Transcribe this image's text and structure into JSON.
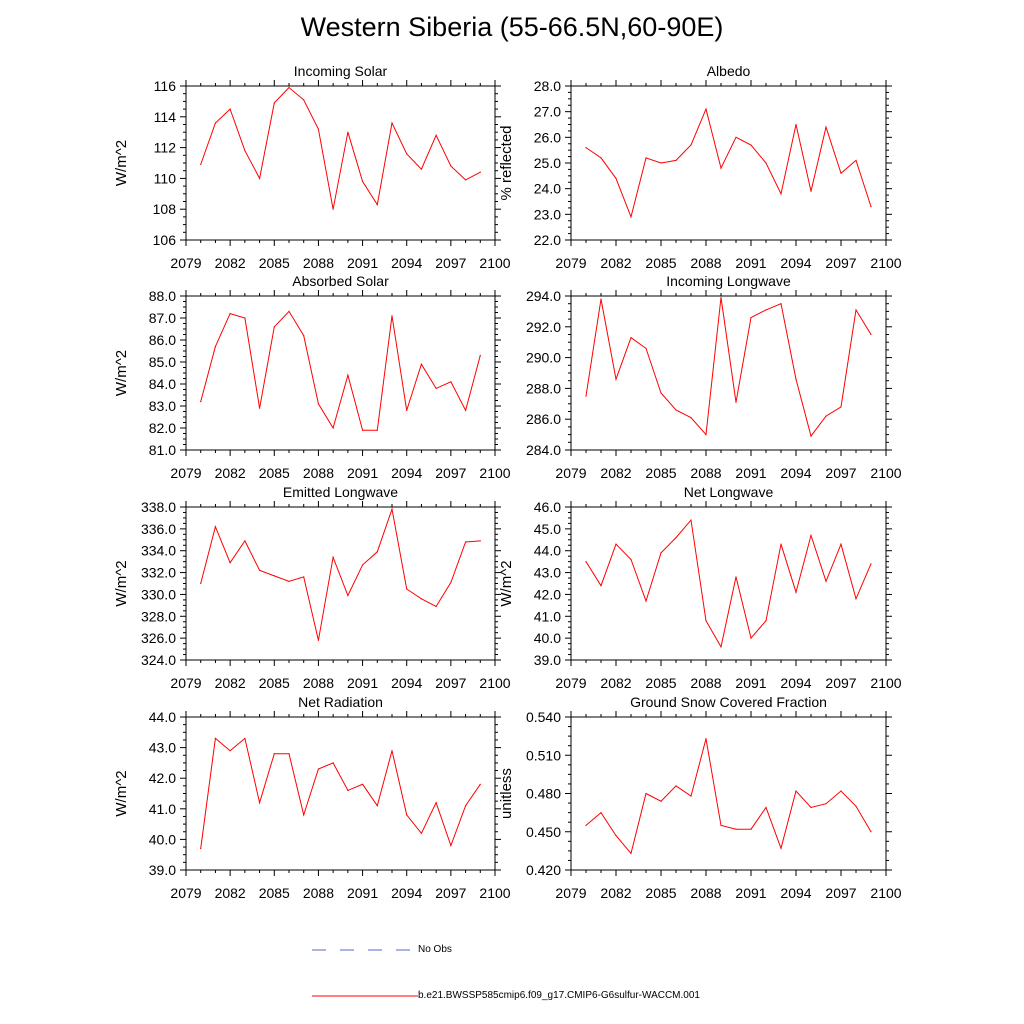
{
  "title": "Western Siberia (55-66.5N,60-90E)",
  "legend": {
    "entries": [
      {
        "label": "No Obs",
        "style": "dashed",
        "color": "#5566cc"
      },
      {
        "label": "b.e21.BWSSP585cmip6.f09_g17.CMIP6-G6sulfur-WACCM.001",
        "style": "solid",
        "color": "#ff0000"
      }
    ]
  },
  "chart_data": [
    {
      "type": "line",
      "title": "Incoming Solar",
      "ylabel": "W/m^2",
      "xlim": [
        2079,
        2100
      ],
      "ylim": [
        106,
        116
      ],
      "xticks": [
        2079,
        2082,
        2085,
        2088,
        2091,
        2094,
        2097,
        2100
      ],
      "yticks": [
        "106",
        "108",
        "110",
        "112",
        "114",
        "116"
      ],
      "yticks_values": [
        106,
        108,
        110,
        112,
        114,
        116
      ],
      "x": [
        2080,
        2081,
        2082,
        2083,
        2084,
        2085,
        2086,
        2087,
        2088,
        2089,
        2090,
        2091,
        2092,
        2093,
        2094,
        2095,
        2096,
        2097,
        2098,
        2099
      ],
      "series": [
        {
          "color": "#ff0000",
          "values": [
            110.9,
            113.6,
            114.5,
            111.8,
            110.0,
            114.9,
            115.9,
            115.1,
            113.2,
            108.0,
            113.0,
            109.8,
            108.3,
            113.6,
            111.6,
            110.6,
            112.8,
            110.8,
            109.9,
            110.4
          ]
        }
      ]
    },
    {
      "type": "line",
      "title": "Albedo",
      "ylabel": "% reflected",
      "xlim": [
        2079,
        2100
      ],
      "ylim": [
        22.0,
        28.0
      ],
      "xticks": [
        2079,
        2082,
        2085,
        2088,
        2091,
        2094,
        2097,
        2100
      ],
      "yticks": [
        "22.0",
        "23.0",
        "24.0",
        "25.0",
        "26.0",
        "27.0",
        "28.0"
      ],
      "yticks_values": [
        22,
        23,
        24,
        25,
        26,
        27,
        28
      ],
      "x": [
        2080,
        2081,
        2082,
        2083,
        2084,
        2085,
        2086,
        2087,
        2088,
        2089,
        2090,
        2091,
        2092,
        2093,
        2094,
        2095,
        2096,
        2097,
        2098,
        2099
      ],
      "series": [
        {
          "color": "#ff0000",
          "values": [
            25.6,
            25.2,
            24.4,
            22.9,
            25.2,
            25.0,
            25.1,
            25.7,
            27.1,
            24.8,
            26.0,
            25.7,
            25.0,
            23.8,
            26.5,
            23.9,
            26.4,
            24.6,
            25.1,
            23.3
          ]
        }
      ]
    },
    {
      "type": "line",
      "title": "Absorbed Solar",
      "ylabel": "W/m^2",
      "xlim": [
        2079,
        2100
      ],
      "ylim": [
        81.0,
        88.0
      ],
      "xticks": [
        2079,
        2082,
        2085,
        2088,
        2091,
        2094,
        2097,
        2100
      ],
      "yticks": [
        "81.0",
        "82.0",
        "83.0",
        "84.0",
        "85.0",
        "86.0",
        "87.0",
        "88.0"
      ],
      "yticks_values": [
        81,
        82,
        83,
        84,
        85,
        86,
        87,
        88
      ],
      "x": [
        2080,
        2081,
        2082,
        2083,
        2084,
        2085,
        2086,
        2087,
        2088,
        2089,
        2090,
        2091,
        2092,
        2093,
        2094,
        2095,
        2096,
        2097,
        2098,
        2099
      ],
      "series": [
        {
          "color": "#ff0000",
          "values": [
            83.2,
            85.7,
            87.2,
            87.0,
            82.9,
            86.6,
            87.3,
            86.2,
            83.1,
            82.0,
            84.4,
            81.9,
            81.9,
            87.1,
            82.8,
            84.9,
            83.8,
            84.1,
            82.8,
            85.3
          ]
        }
      ]
    },
    {
      "type": "line",
      "title": "Incoming Longwave",
      "ylabel": "",
      "xlim": [
        2079,
        2100
      ],
      "ylim": [
        284.0,
        294.0
      ],
      "xticks": [
        2079,
        2082,
        2085,
        2088,
        2091,
        2094,
        2097,
        2100
      ],
      "yticks": [
        "284.0",
        "286.0",
        "288.0",
        "290.0",
        "292.0",
        "294.0"
      ],
      "yticks_values": [
        284,
        286,
        288,
        290,
        292,
        294
      ],
      "x": [
        2080,
        2081,
        2082,
        2083,
        2084,
        2085,
        2086,
        2087,
        2088,
        2089,
        2090,
        2091,
        2092,
        2093,
        2094,
        2095,
        2096,
        2097,
        2098,
        2099
      ],
      "series": [
        {
          "color": "#ff0000",
          "values": [
            287.5,
            293.8,
            288.6,
            291.3,
            290.6,
            287.7,
            286.6,
            286.1,
            285.0,
            293.9,
            287.1,
            292.6,
            293.1,
            293.5,
            288.6,
            284.9,
            286.2,
            286.8,
            293.1,
            291.5
          ]
        }
      ]
    },
    {
      "type": "line",
      "title": "Emitted Longwave",
      "ylabel": "W/m^2",
      "xlim": [
        2079,
        2100
      ],
      "ylim": [
        324.0,
        338.0
      ],
      "xticks": [
        2079,
        2082,
        2085,
        2088,
        2091,
        2094,
        2097,
        2100
      ],
      "yticks": [
        "324.0",
        "326.0",
        "328.0",
        "330.0",
        "332.0",
        "334.0",
        "336.0",
        "338.0"
      ],
      "yticks_values": [
        324,
        326,
        328,
        330,
        332,
        334,
        336,
        338
      ],
      "x": [
        2080,
        2081,
        2082,
        2083,
        2084,
        2085,
        2086,
        2087,
        2088,
        2089,
        2090,
        2091,
        2092,
        2093,
        2094,
        2095,
        2096,
        2097,
        2098,
        2099
      ],
      "series": [
        {
          "color": "#ff0000",
          "values": [
            331.0,
            336.2,
            332.9,
            334.9,
            332.2,
            331.7,
            331.2,
            331.6,
            325.8,
            333.4,
            329.9,
            332.7,
            333.9,
            337.8,
            330.5,
            329.6,
            328.9,
            331.1,
            334.8,
            334.9
          ]
        }
      ]
    },
    {
      "type": "line",
      "title": "Net Longwave",
      "ylabel": "W/m^2",
      "xlim": [
        2079,
        2100
      ],
      "ylim": [
        39.0,
        46.0
      ],
      "xticks": [
        2079,
        2082,
        2085,
        2088,
        2091,
        2094,
        2097,
        2100
      ],
      "yticks": [
        "39.0",
        "40.0",
        "41.0",
        "42.0",
        "43.0",
        "44.0",
        "45.0",
        "46.0"
      ],
      "yticks_values": [
        39,
        40,
        41,
        42,
        43,
        44,
        45,
        46
      ],
      "x": [
        2080,
        2081,
        2082,
        2083,
        2084,
        2085,
        2086,
        2087,
        2088,
        2089,
        2090,
        2091,
        2092,
        2093,
        2094,
        2095,
        2096,
        2097,
        2098,
        2099
      ],
      "series": [
        {
          "color": "#ff0000",
          "values": [
            43.5,
            42.4,
            44.3,
            43.6,
            41.7,
            43.9,
            44.6,
            45.4,
            40.8,
            39.6,
            42.8,
            40.0,
            40.8,
            44.3,
            42.1,
            44.7,
            42.6,
            44.3,
            41.8,
            43.4
          ]
        }
      ]
    },
    {
      "type": "line",
      "title": "Net Radiation",
      "ylabel": "W/m^2",
      "xlim": [
        2079,
        2100
      ],
      "ylim": [
        39.0,
        44.0
      ],
      "xticks": [
        2079,
        2082,
        2085,
        2088,
        2091,
        2094,
        2097,
        2100
      ],
      "yticks": [
        "39.0",
        "40.0",
        "41.0",
        "42.0",
        "43.0",
        "44.0"
      ],
      "yticks_values": [
        39,
        40,
        41,
        42,
        43,
        44
      ],
      "x": [
        2080,
        2081,
        2082,
        2083,
        2084,
        2085,
        2086,
        2087,
        2088,
        2089,
        2090,
        2091,
        2092,
        2093,
        2094,
        2095,
        2096,
        2097,
        2098,
        2099
      ],
      "series": [
        {
          "color": "#ff0000",
          "values": [
            39.7,
            43.3,
            42.9,
            43.3,
            41.2,
            42.8,
            42.8,
            40.8,
            42.3,
            42.5,
            41.6,
            41.8,
            41.1,
            42.9,
            40.8,
            40.2,
            41.2,
            39.8,
            41.1,
            41.8
          ]
        }
      ]
    },
    {
      "type": "line",
      "title": "Ground Snow Covered Fraction",
      "ylabel": "unitless",
      "xlim": [
        2079,
        2100
      ],
      "ylim": [
        0.42,
        0.54
      ],
      "xticks": [
        2079,
        2082,
        2085,
        2088,
        2091,
        2094,
        2097,
        2100
      ],
      "yticks": [
        "0.420",
        "0.450",
        "0.480",
        "0.510",
        "0.540"
      ],
      "yticks_values": [
        0.42,
        0.45,
        0.48,
        0.51,
        0.54
      ],
      "x": [
        2080,
        2081,
        2082,
        2083,
        2084,
        2085,
        2086,
        2087,
        2088,
        2089,
        2090,
        2091,
        2092,
        2093,
        2094,
        2095,
        2096,
        2097,
        2098,
        2099
      ],
      "series": [
        {
          "color": "#ff0000",
          "values": [
            0.455,
            0.465,
            0.447,
            0.433,
            0.48,
            0.474,
            0.486,
            0.478,
            0.523,
            0.455,
            0.452,
            0.452,
            0.469,
            0.437,
            0.482,
            0.469,
            0.472,
            0.482,
            0.47,
            0.45
          ]
        }
      ]
    }
  ]
}
